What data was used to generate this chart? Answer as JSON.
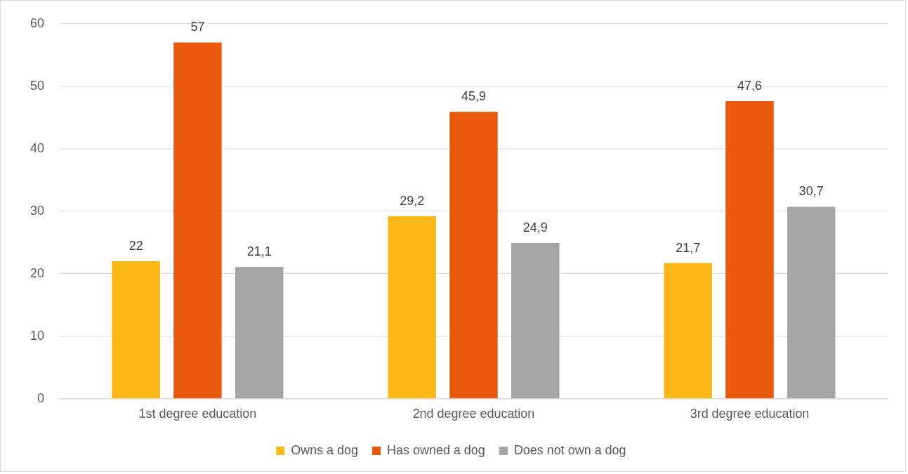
{
  "chart_data": {
    "type": "bar",
    "categories": [
      "1st degree education",
      "2nd degree education",
      "3rd degree education"
    ],
    "series": [
      {
        "name": "Owns a dog",
        "color": "#fbb817",
        "values": [
          22,
          29.2,
          21.7
        ],
        "value_labels": [
          "22",
          "29,2",
          "21,7"
        ]
      },
      {
        "name": "Has owned a dog",
        "color": "#e8590e",
        "values": [
          57,
          45.9,
          47.6
        ],
        "value_labels": [
          "57",
          "45,9",
          "47,6"
        ]
      },
      {
        "name": "Does not own a dog",
        "color": "#a5a5a5",
        "values": [
          21.1,
          24.9,
          30.7
        ],
        "value_labels": [
          "21,1",
          "24,9",
          "30,7"
        ]
      }
    ],
    "ylim": [
      0,
      60
    ],
    "yticks": [
      0,
      10,
      20,
      30,
      40,
      50,
      60
    ],
    "grid": "y",
    "legend": "bottom"
  }
}
